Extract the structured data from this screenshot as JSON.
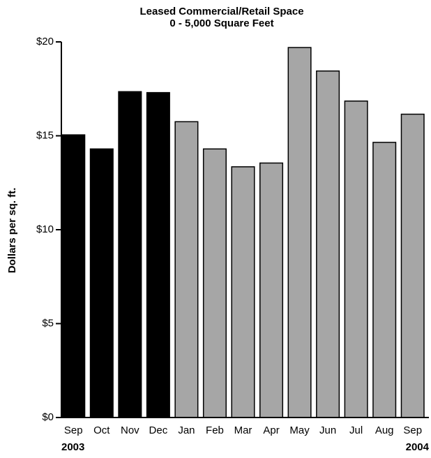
{
  "chart_data": {
    "type": "bar",
    "title": [
      "Leased Commercial/Retail Space",
      "0 - 5,000 Square Feet"
    ],
    "y_label": "Dollars per sq. ft.",
    "categories": [
      "Sep",
      "Oct",
      "Nov",
      "Dec",
      "Jan",
      "Feb",
      "Mar",
      "Apr",
      "May",
      "Jun",
      "Jul",
      "Aug",
      "Sep"
    ],
    "values": [
      15.05,
      14.3,
      17.35,
      17.3,
      15.75,
      14.3,
      13.35,
      13.55,
      19.7,
      18.45,
      16.85,
      14.65,
      16.15
    ],
    "colors": [
      "#000000",
      "#000000",
      "#000000",
      "#000000",
      "#a6a6a6",
      "#a6a6a6",
      "#a6a6a6",
      "#a6a6a6",
      "#a6a6a6",
      "#a6a6a6",
      "#a6a6a6",
      "#a6a6a6",
      "#a6a6a6"
    ],
    "annotations": [
      "2003",
      "2004"
    ],
    "ylim": [
      0,
      20
    ],
    "yticks": [
      {
        "value": 0,
        "label": "$0"
      },
      {
        "value": 5,
        "label": "$5"
      },
      {
        "value": 10,
        "label": "$10"
      },
      {
        "value": 15,
        "label": "$15"
      },
      {
        "value": 20,
        "label": "$20"
      }
    ],
    "grid": false
  }
}
